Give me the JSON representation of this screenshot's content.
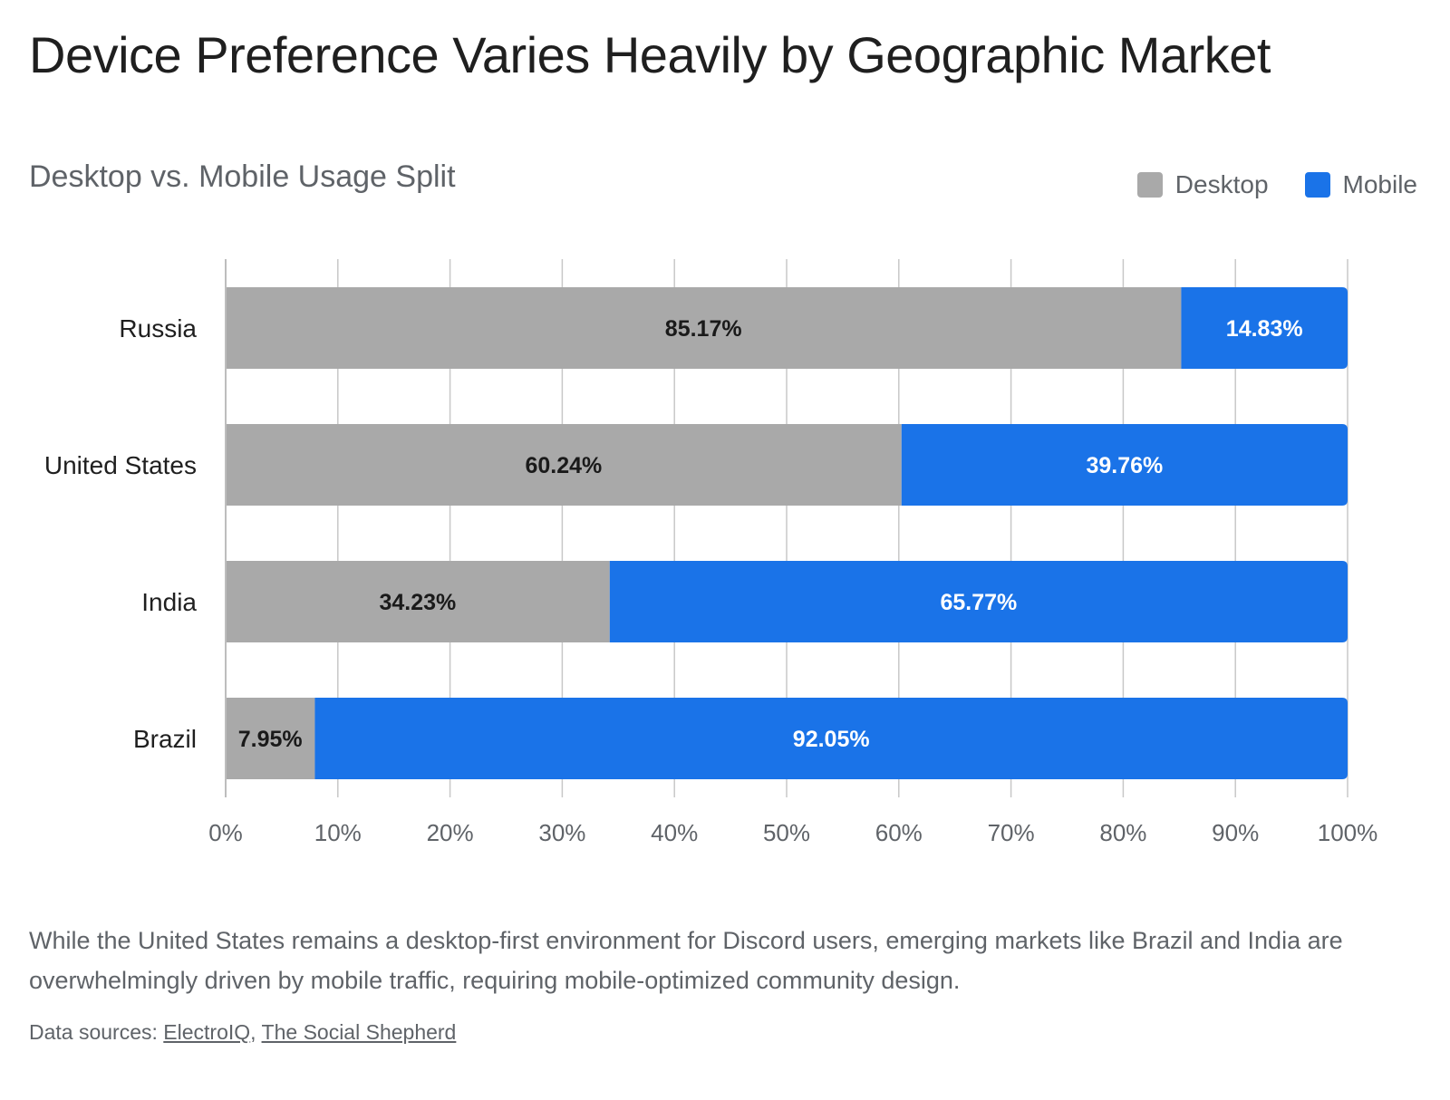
{
  "title": "Device Preference Varies Heavily by Geographic Market",
  "subtitle": "Desktop vs. Mobile Usage Split",
  "caption": "While the United States remains a desktop-first environment for Discord users, emerging markets like Brazil and India are overwhelmingly driven by mobile traffic, requiring mobile-optimized community design.",
  "sources": {
    "prefix": "Data sources: ",
    "links": [
      "ElectroIQ",
      "The Social Shepherd"
    ],
    "separator": ", "
  },
  "colors": {
    "desktop": "#a9a9a9",
    "mobile": "#1a73e8",
    "grid": "#c8c8c8"
  },
  "chart_data": {
    "type": "bar",
    "orientation": "horizontal",
    "stacked": true,
    "categories": [
      "Russia",
      "United States",
      "India",
      "Brazil"
    ],
    "series": [
      {
        "name": "Desktop",
        "values": [
          85.17,
          60.24,
          34.23,
          7.95
        ],
        "labels": [
          "85.17%",
          "60.24%",
          "34.23%",
          "7.95%"
        ]
      },
      {
        "name": "Mobile",
        "values": [
          14.83,
          39.76,
          65.77,
          92.05
        ],
        "labels": [
          "14.83%",
          "39.76%",
          "65.77%",
          "92.05%"
        ]
      }
    ],
    "xlim": [
      0,
      100
    ],
    "xticks": [
      "0%",
      "10%",
      "20%",
      "30%",
      "40%",
      "50%",
      "60%",
      "70%",
      "80%",
      "90%",
      "100%"
    ],
    "grid": true,
    "legend": "top-right"
  }
}
